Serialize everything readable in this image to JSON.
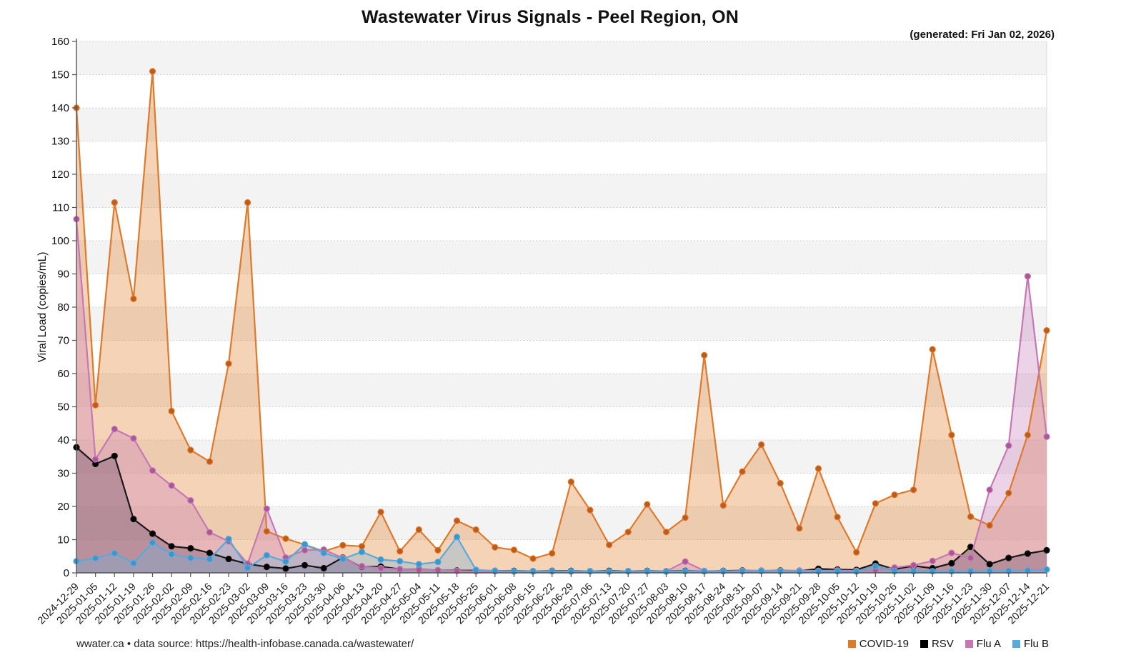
{
  "header": {
    "title": "Wastewater Virus Signals - Peel Region, ON",
    "generated": "(generated: Fri Jan 02, 2026)"
  },
  "footer": {
    "source": "wwater.ca • data source: https://health-infobase.canada.ca/wastewater/"
  },
  "chart_data": {
    "type": "area",
    "title": "Wastewater Virus Signals - Peel Region, ON",
    "xlabel": "",
    "ylabel": "Viral Load (copies/mL)",
    "ylim": [
      0,
      160
    ],
    "ytick_step": 10,
    "grid": "horizontal-dotted",
    "background_bands": "alternating light gray every 10 units",
    "legend_position": "bottom-right",
    "categories": [
      "2024-12-29",
      "2025-01-05",
      "2025-01-12",
      "2025-01-19",
      "2025-01-26",
      "2025-02-02",
      "2025-02-09",
      "2025-02-16",
      "2025-02-23",
      "2025-03-02",
      "2025-03-09",
      "2025-03-16",
      "2025-03-23",
      "2025-03-30",
      "2025-04-06",
      "2025-04-13",
      "2025-04-20",
      "2025-04-27",
      "2025-05-04",
      "2025-05-11",
      "2025-05-18",
      "2025-05-25",
      "2025-06-01",
      "2025-06-08",
      "2025-06-15",
      "2025-06-22",
      "2025-06-29",
      "2025-07-06",
      "2025-07-13",
      "2025-07-20",
      "2025-07-27",
      "2025-08-03",
      "2025-08-10",
      "2025-08-17",
      "2025-08-24",
      "2025-08-31",
      "2025-09-07",
      "2025-09-14",
      "2025-09-21",
      "2025-09-28",
      "2025-10-05",
      "2025-10-12",
      "2025-10-19",
      "2025-10-26",
      "2025-11-02",
      "2025-11-09",
      "2025-11-16",
      "2025-11-23",
      "2025-11-30",
      "2025-12-07",
      "2025-12-14",
      "2025-12-21"
    ],
    "series": [
      {
        "name": "COVID-19",
        "color": "#dd7a2b",
        "marker_color": "#bf5a1d",
        "fill_color": "rgba(228,140,66,0.38)",
        "values": [
          140,
          50.5,
          111.5,
          82.5,
          151,
          48.7,
          37,
          33.5,
          63,
          111.5,
          12.5,
          10.3,
          8.5,
          6.5,
          8.3,
          8,
          18.3,
          6.5,
          13,
          6.8,
          15.7,
          13,
          7.7,
          6.9,
          4.3,
          5.9,
          27.4,
          18.9,
          8.4,
          12.3,
          20.6,
          12.3,
          16.6,
          65.5,
          20.3,
          30.5,
          38.6,
          27,
          13.4,
          31.4,
          16.8,
          6.2,
          20.9,
          23.5,
          25,
          67.3,
          41.5,
          16.9,
          14.3,
          24,
          41.5,
          73
        ]
      },
      {
        "name": "RSV",
        "color": "#1a1a1a",
        "marker_color": "#000000",
        "fill_color": "rgba(45,45,55,0.35)",
        "values": [
          37.8,
          32.8,
          35.2,
          16.2,
          11.8,
          8,
          7.4,
          6,
          4.2,
          2.7,
          1.8,
          1.3,
          2.3,
          1.4,
          4.6,
          1.9,
          1.9,
          1.1,
          1,
          0.8,
          0.7,
          0.7,
          0.6,
          0.6,
          0.5,
          0.6,
          0.6,
          0.5,
          0.6,
          0.5,
          0.6,
          0.5,
          0.6,
          0.5,
          0.6,
          0.7,
          0.6,
          0.7,
          0.6,
          1.2,
          1,
          0.9,
          2.8,
          1.1,
          2.1,
          1.4,
          2.9,
          7.8,
          2.6,
          4.5,
          5.8,
          6.8
        ]
      },
      {
        "name": "Flu A",
        "color": "#c678b5",
        "marker_color": "#a85798",
        "fill_color": "rgba(203,130,189,0.35)",
        "values": [
          106.5,
          34.2,
          43.3,
          40.5,
          30.8,
          26.3,
          21.8,
          12.2,
          9.5,
          2.8,
          19.3,
          4.6,
          6.8,
          7,
          4.5,
          2,
          1.4,
          1.1,
          0.9,
          0.8,
          0.6,
          0.5,
          0.5,
          0.4,
          0.4,
          0.5,
          0.4,
          0.5,
          0.4,
          0.5,
          0.5,
          0.5,
          3.4,
          0.6,
          0.5,
          0.6,
          0.7,
          0.6,
          0.7,
          0.6,
          0.7,
          0.6,
          0.8,
          1.6,
          2.3,
          3.6,
          6,
          4.5,
          25,
          38.3,
          89.3,
          41
        ]
      },
      {
        "name": "Flu B",
        "color": "#5aa9da",
        "marker_color": "#3b96cd",
        "fill_color": "rgba(118,178,221,0.35)",
        "values": [
          3.5,
          4.4,
          5.9,
          2.9,
          9.1,
          5.6,
          4.5,
          4.1,
          10.2,
          1.5,
          5.3,
          3.4,
          8.6,
          6,
          4.2,
          6.3,
          4,
          3.5,
          2.6,
          3.3,
          10.8,
          0.9,
          0.6,
          0.5,
          0.5,
          0.5,
          0.5,
          0.5,
          0.4,
          0.5,
          0.5,
          0.4,
          0.5,
          0.5,
          0.5,
          0.5,
          0.6,
          0.5,
          0.5,
          0.5,
          0.5,
          0.4,
          2,
          0.5,
          0.5,
          0.5,
          0.5,
          0.5,
          0.6,
          0.6,
          0.7,
          1
        ]
      }
    ]
  }
}
